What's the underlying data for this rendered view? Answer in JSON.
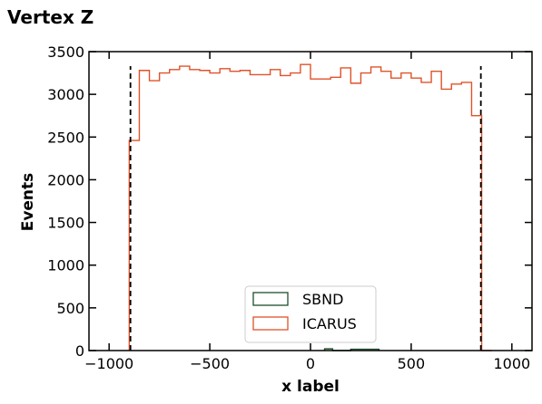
{
  "chart_data": {
    "type": "histogram",
    "title": "Vertex Z",
    "xlabel": "x label",
    "ylabel": "Events",
    "xlim": [
      -1100,
      1100
    ],
    "ylim": [
      0,
      3500
    ],
    "xticks": [
      -1000,
      -500,
      0,
      500,
      1000
    ],
    "xtick_labels": [
      "−1000",
      "−500",
      "0",
      "500",
      "1000"
    ],
    "yticks": [
      0,
      500,
      1000,
      1500,
      2000,
      2500,
      3000,
      3500
    ],
    "ytick_labels": [
      "0",
      "500",
      "1000",
      "1500",
      "2000",
      "2500",
      "3000",
      "3500"
    ],
    "grid": false,
    "legend_position": "lower center",
    "vlines": [
      {
        "x": -894,
        "style": "dashed",
        "color": "#000000"
      },
      {
        "x": 846,
        "style": "dashed",
        "color": "#000000"
      }
    ],
    "series": [
      {
        "name": "SBND",
        "color": "#1f4d2c",
        "histtype": "step",
        "bin_edges": [
          70,
          110,
          200,
          270,
          340
        ],
        "counts": [
          20,
          0,
          15,
          15
        ]
      },
      {
        "name": "ICARUS",
        "color": "#e0522a",
        "histtype": "step",
        "bin_edges": [
          -900,
          -850,
          -800,
          -750,
          -700,
          -650,
          -600,
          -550,
          -500,
          -450,
          -400,
          -350,
          -300,
          -250,
          -200,
          -150,
          -100,
          -50,
          0,
          50,
          100,
          150,
          200,
          250,
          300,
          350,
          400,
          450,
          500,
          550,
          600,
          650,
          700,
          750,
          800,
          850,
          900
        ],
        "counts": [
          2460,
          3280,
          3160,
          3250,
          3290,
          3330,
          3290,
          3280,
          3250,
          3300,
          3270,
          3280,
          3230,
          3230,
          3290,
          3220,
          3250,
          3350,
          3180,
          3180,
          3200,
          3310,
          3130,
          3250,
          3320,
          3270,
          3190,
          3250,
          3190,
          3140,
          3270,
          3060,
          3120,
          3140,
          2750,
          0
        ]
      }
    ]
  }
}
